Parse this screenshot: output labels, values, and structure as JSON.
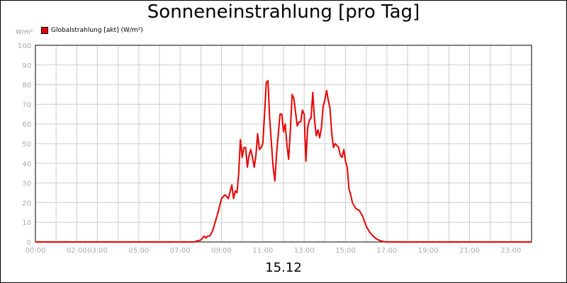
{
  "chart_data": {
    "type": "line",
    "title": "Sonneneinstrahlung [pro Tag]",
    "ylabel": "W/m²",
    "xlabel": "15.12",
    "ylim": [
      0,
      100
    ],
    "xlim": [
      "00:00",
      "24:00"
    ],
    "grid": true,
    "legend_position": "top-left",
    "y_ticks": [
      "0",
      "10",
      "20",
      "30",
      "40",
      "50",
      "60",
      "70",
      "80",
      "90",
      "100"
    ],
    "x_ticks": [
      "00:00",
      "02:00",
      "03:00",
      "05:00",
      "07:00",
      "09:00",
      "11:00",
      "13:00",
      "15:00",
      "17:00",
      "19:00",
      "21:00",
      "23:00"
    ],
    "series": [
      {
        "name": "Globalstrahlung [akt] (W/m²)",
        "color": "#e60000",
        "x": [
          "00:00",
          "07:40",
          "08:00",
          "08:10",
          "08:15",
          "08:20",
          "08:25",
          "08:30",
          "08:35",
          "08:45",
          "08:50",
          "09:00",
          "09:10",
          "09:20",
          "09:30",
          "09:35",
          "09:40",
          "09:45",
          "09:50",
          "09:55",
          "10:00",
          "10:05",
          "10:10",
          "10:15",
          "10:20",
          "10:25",
          "10:30",
          "10:35",
          "10:40",
          "10:45",
          "10:50",
          "10:55",
          "11:00",
          "11:05",
          "11:10",
          "11:15",
          "11:20",
          "11:25",
          "11:30",
          "11:35",
          "11:40",
          "11:45",
          "11:50",
          "11:55",
          "12:00",
          "12:05",
          "12:10",
          "12:15",
          "12:20",
          "12:25",
          "12:30",
          "12:35",
          "12:40",
          "12:45",
          "12:50",
          "12:55",
          "13:00",
          "13:05",
          "13:10",
          "13:15",
          "13:20",
          "13:25",
          "13:30",
          "13:35",
          "13:40",
          "13:45",
          "13:50",
          "13:55",
          "14:00",
          "14:05",
          "14:10",
          "14:15",
          "14:20",
          "14:25",
          "14:30",
          "14:35",
          "14:40",
          "14:45",
          "14:50",
          "14:55",
          "15:00",
          "15:05",
          "15:10",
          "15:15",
          "15:20",
          "15:30",
          "15:40",
          "15:50",
          "16:00",
          "16:10",
          "16:20",
          "16:30",
          "16:40",
          "16:50",
          "17:00",
          "17:10",
          "17:20",
          "24:00"
        ],
        "values": [
          0,
          0,
          1,
          3,
          2,
          3,
          3,
          4,
          6,
          12,
          15,
          22,
          24,
          22,
          29,
          22,
          26,
          25,
          35,
          52,
          43,
          48,
          48,
          38,
          44,
          47,
          43,
          38,
          44,
          55,
          47,
          48,
          50,
          65,
          81,
          82,
          62,
          50,
          38,
          31,
          45,
          55,
          65,
          65,
          56,
          60,
          49,
          42,
          57,
          75,
          73,
          66,
          59,
          61,
          61,
          67,
          65,
          41,
          58,
          62,
          63,
          76,
          62,
          54,
          57,
          53,
          58,
          69,
          72,
          77,
          72,
          68,
          55,
          48,
          50,
          49,
          48,
          44,
          43,
          47,
          41,
          38,
          27,
          24,
          20,
          17,
          16,
          13,
          8,
          5,
          3,
          1.5,
          0.7,
          0.2,
          0,
          0,
          0,
          0
        ]
      }
    ]
  }
}
